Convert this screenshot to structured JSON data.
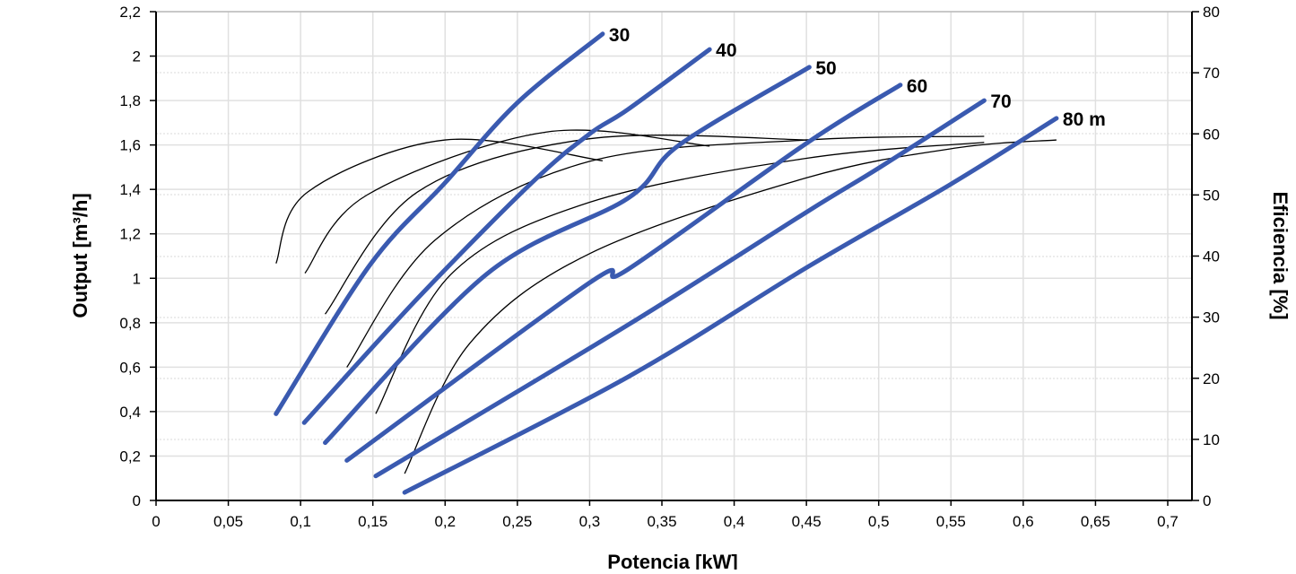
{
  "chart_data": {
    "type": "line",
    "xlabel": "Potencia [kW]",
    "ylabel": "Output [m³/h]",
    "y2label": "Eficiencia [%]",
    "xlim": [
      0,
      0.7
    ],
    "ylim": [
      0,
      2.2
    ],
    "y2lim": [
      0,
      80
    ],
    "grid": true,
    "x_ticks": [
      "0",
      "0,05",
      "0,1",
      "0,15",
      "0,2",
      "0,25",
      "0,3",
      "0,35",
      "0,4",
      "0,45",
      "0,5",
      "0,55",
      "0,6",
      "0,65",
      "0,7"
    ],
    "y_ticks": [
      "0",
      "0,2",
      "0,4",
      "0,6",
      "0,8",
      "1",
      "1,2",
      "1,4",
      "1,6",
      "1,8",
      "2",
      "2,2"
    ],
    "y2_ticks": [
      "0",
      "10",
      "20",
      "30",
      "40",
      "50",
      "60",
      "70",
      "80"
    ],
    "colors": {
      "output": "#3a5ab0",
      "efficiency": "#000000"
    },
    "output_series": [
      {
        "label": "30",
        "points": [
          [
            0.083,
            0.39
          ],
          [
            0.148,
            1.06
          ],
          [
            0.2,
            1.43
          ],
          [
            0.25,
            1.79
          ],
          [
            0.309,
            2.1
          ]
        ]
      },
      {
        "label": "40",
        "points": [
          [
            0.1025,
            0.35
          ],
          [
            0.181,
            0.91
          ],
          [
            0.26,
            1.43
          ],
          [
            0.3,
            1.65
          ],
          [
            0.3265,
            1.76
          ],
          [
            0.383,
            2.03
          ]
        ]
      },
      {
        "label": "50",
        "points": [
          [
            0.117,
            0.26
          ],
          [
            0.229,
            1.02
          ],
          [
            0.3265,
            1.36
          ],
          [
            0.362,
            1.6
          ],
          [
            0.452,
            1.95
          ]
        ]
      },
      {
        "label": "60",
        "points": [
          [
            0.132,
            0.18
          ],
          [
            0.3,
            0.98
          ],
          [
            0.3265,
            1.04
          ],
          [
            0.4506,
            1.61
          ],
          [
            0.515,
            1.87
          ]
        ]
      },
      {
        "label": "70",
        "points": [
          [
            0.152,
            0.11
          ],
          [
            0.3265,
            0.79
          ],
          [
            0.4506,
            1.3
          ],
          [
            0.501,
            1.5
          ],
          [
            0.573,
            1.8
          ]
        ]
      },
      {
        "label": "80 m",
        "points": [
          [
            0.172,
            0.036
          ],
          [
            0.3265,
            0.556
          ],
          [
            0.4506,
            1.05
          ],
          [
            0.549,
            1.42
          ],
          [
            0.623,
            1.72
          ]
        ]
      }
    ],
    "efficiency_series": [
      {
        "points": [
          [
            0.083,
            38.8
          ],
          [
            0.105,
            50.5
          ],
          [
            0.2,
            59.0
          ],
          [
            0.309,
            55.6
          ]
        ]
      },
      {
        "points": [
          [
            0.103,
            37.2
          ],
          [
            0.146,
            50.0
          ],
          [
            0.27,
            60.3
          ],
          [
            0.383,
            58.0
          ]
        ]
      },
      {
        "points": [
          [
            0.117,
            30.5
          ],
          [
            0.181,
            50.5
          ],
          [
            0.3,
            59.2
          ],
          [
            0.452,
            59.0
          ]
        ]
      },
      {
        "points": [
          [
            0.132,
            21.8
          ],
          [
            0.193,
            42.6
          ],
          [
            0.3,
            55.5
          ],
          [
            0.45,
            59.0
          ],
          [
            0.573,
            59.6
          ]
        ]
      },
      {
        "points": [
          [
            0.152,
            14.2
          ],
          [
            0.204,
            37.0
          ],
          [
            0.3,
            48.8
          ],
          [
            0.45,
            56.0
          ],
          [
            0.573,
            58.6
          ]
        ]
      },
      {
        "points": [
          [
            0.172,
            4.4
          ],
          [
            0.217,
            25.7
          ],
          [
            0.3,
            40.4
          ],
          [
            0.45,
            52.8
          ],
          [
            0.554,
            57.7
          ],
          [
            0.623,
            59.0
          ]
        ]
      }
    ]
  }
}
